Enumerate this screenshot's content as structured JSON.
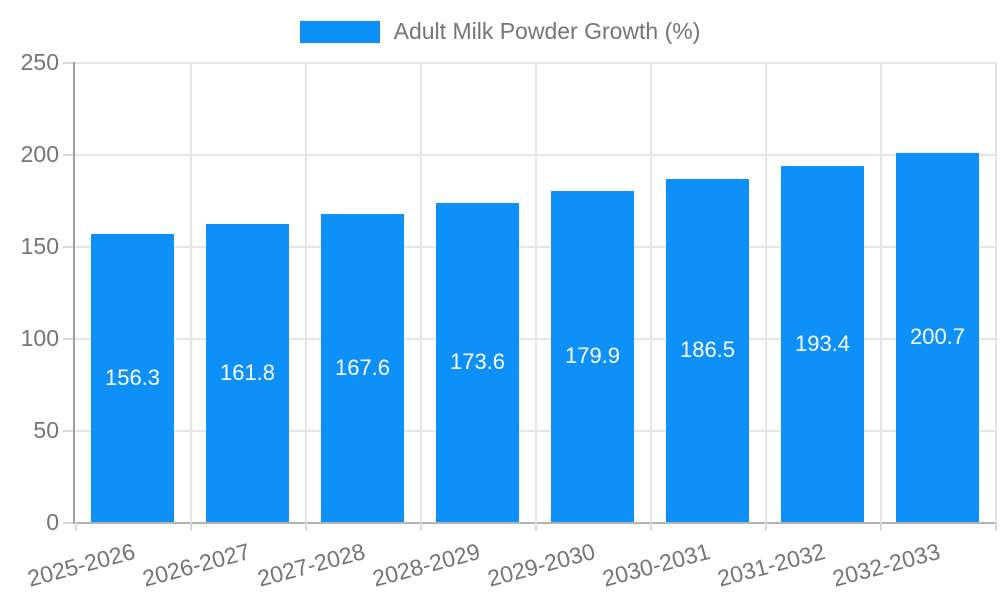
{
  "legend": {
    "label": "Adult Milk Powder Growth (%)"
  },
  "colors": {
    "bar": "#0D90F8",
    "bar_label_text": "#ffffff",
    "axis_text": "#757575",
    "grid_line": "#e6e6e6",
    "axis_line": "#9e9e9e"
  },
  "chart_data": {
    "type": "bar",
    "title": "",
    "legend_entries": [
      "Adult Milk Powder Growth (%)"
    ],
    "legend_position": "top",
    "categories": [
      "2025-2026",
      "2026-2027",
      "2027-2028",
      "2028-2029",
      "2029-2030",
      "2030-2031",
      "2031-2032",
      "2032-2033"
    ],
    "values": [
      156.3,
      161.8,
      167.6,
      173.6,
      179.9,
      186.5,
      193.4,
      200.7
    ],
    "value_labels": [
      "156.3",
      "161.8",
      "167.6",
      "173.6",
      "179.9",
      "186.5",
      "193.4",
      "200.7"
    ],
    "xlabel": "",
    "ylabel": "",
    "ylim": [
      0,
      250
    ],
    "yticks": [
      0,
      50,
      100,
      150,
      200,
      250
    ],
    "grid": true
  }
}
